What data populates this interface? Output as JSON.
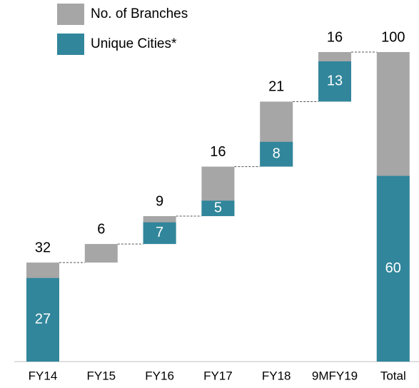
{
  "chart_data": {
    "type": "waterfall",
    "categories": [
      "FY14",
      "FY15",
      "FY16",
      "FY17",
      "FY18",
      "9MFY19",
      "Total"
    ],
    "series": [
      {
        "name": "No. of Branches",
        "color": "#a6a6a6",
        "values": [
          32,
          6,
          9,
          16,
          21,
          16,
          100
        ]
      },
      {
        "name": "Unique Cities*",
        "color": "#31869b",
        "values": [
          27,
          null,
          7,
          5,
          8,
          13,
          60
        ]
      }
    ],
    "legend": "top-left"
  }
}
